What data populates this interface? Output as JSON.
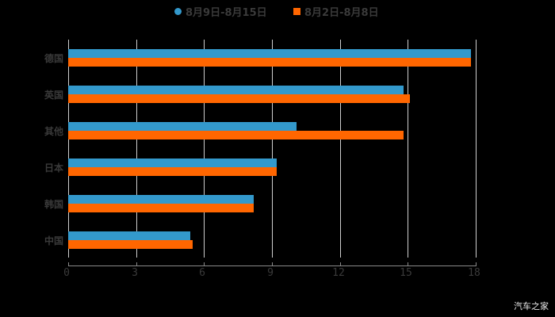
{
  "legend": [
    {
      "label": "8月9日-8月15日",
      "color": "#3399CC",
      "marker": "circle"
    },
    {
      "label": "8月2日-8月8日",
      "color": "#FF6600",
      "marker": "square"
    }
  ],
  "watermark": "汽车之家",
  "axis": {
    "ticks": [
      "0",
      "3",
      "6",
      "9",
      "12",
      "15",
      "18"
    ]
  },
  "chart_data": {
    "type": "bar",
    "orientation": "horizontal",
    "title": "",
    "xlabel": "",
    "ylabel": "",
    "xlim": [
      0,
      18
    ],
    "x_ticks": [
      0,
      3,
      6,
      9,
      12,
      15,
      18
    ],
    "grid": "vertical",
    "legend_position": "top",
    "categories": [
      "德国",
      "英国",
      "其他",
      "日本",
      "韩国",
      "中国"
    ],
    "series": [
      {
        "name": "8月9日-8月15日",
        "color": "#3399CC",
        "values": [
          17.8,
          14.8,
          10.1,
          9.2,
          8.2,
          5.4
        ]
      },
      {
        "name": "8月2日-8月8日",
        "color": "#FF6600",
        "values": [
          17.8,
          15.1,
          14.8,
          9.2,
          8.2,
          5.5
        ]
      }
    ]
  }
}
